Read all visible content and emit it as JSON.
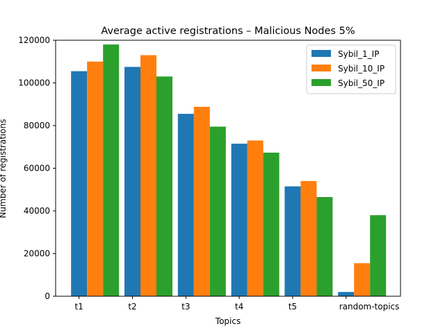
{
  "chart_data": {
    "type": "bar",
    "title": "Average active registrations – Malicious Nodes 5%",
    "xlabel": "Topics",
    "ylabel": "Number of registrations",
    "categories": [
      "t1",
      "t2",
      "t3",
      "t4",
      "t5",
      "random-topics"
    ],
    "series": [
      {
        "name": "Sybil_1_IP",
        "color": "#1f77b4",
        "values": [
          105500,
          107500,
          85500,
          71500,
          51500,
          2000
        ]
      },
      {
        "name": "Sybil_10_IP",
        "color": "#ff7f0e",
        "values": [
          110000,
          113000,
          88800,
          73000,
          54000,
          15500
        ]
      },
      {
        "name": "Sybil_50_IP",
        "color": "#2ca02c",
        "values": [
          118000,
          103000,
          79500,
          67300,
          46500,
          38000
        ]
      }
    ],
    "ylim": [
      0,
      120000
    ],
    "yticks": [
      0,
      20000,
      40000,
      60000,
      80000,
      100000,
      120000
    ],
    "grid": false,
    "legend": "top-right"
  }
}
